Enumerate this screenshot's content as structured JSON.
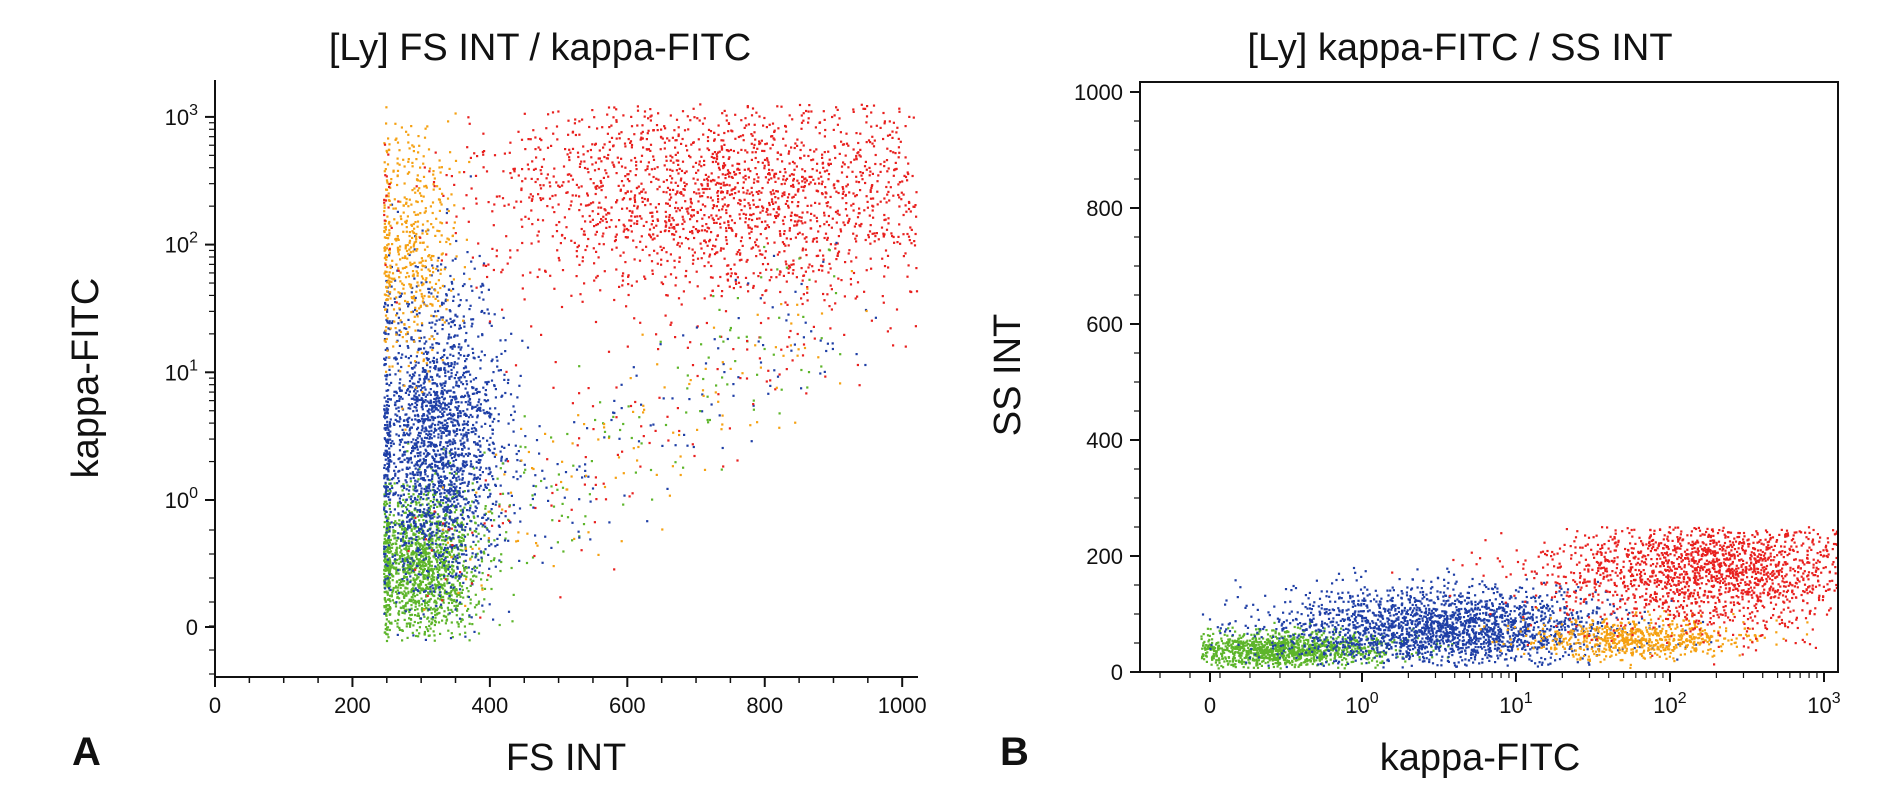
{
  "chart_data": [
    {
      "panel": "A",
      "type": "scatter",
      "title": "[Ly] FS INT / kappa-FITC",
      "xlabel": "FS INT",
      "ylabel": "kappa-FITC",
      "x_scale": "linear",
      "y_scale": "log",
      "xlim": [
        0,
        1023
      ],
      "ylim": [
        "below 0",
        1000
      ],
      "x_ticks": [
        "0",
        "200",
        "400",
        "600",
        "800",
        "1000"
      ],
      "y_ticks": [
        "0",
        "10^0",
        "10^1",
        "10^2",
        "10^3"
      ],
      "colors": {
        "red": "#e8201e",
        "orange": "#f5a112",
        "blue": "#1f3fa6",
        "green": "#5db52a"
      },
      "populations": [
        {
          "color": "red",
          "x_center": 750,
          "y_center": 250,
          "description_values": {
            "x_range": [
              250,
              1023
            ],
            "y_range": [
              20,
              1000
            ]
          }
        },
        {
          "color": "orange",
          "x_center": 280,
          "y_center": 100,
          "description_values": {
            "x_range": [
              250,
              650
            ],
            "y_range": [
              0.8,
              300
            ]
          }
        },
        {
          "color": "blue",
          "x_center": 320,
          "y_center": 3,
          "description_values": {
            "x_range": [
              250,
              600
            ],
            "y_range": [
              0.5,
              100
            ]
          }
        },
        {
          "color": "green",
          "x_center": 300,
          "y_center": 0.3,
          "description_values": {
            "x_range": [
              250,
              700
            ],
            "y_range": [
              0,
              10
            ]
          }
        }
      ],
      "grid": false,
      "legend": "none"
    },
    {
      "panel": "B",
      "type": "scatter",
      "title": "[Ly] kappa-FITC / SS INT",
      "xlabel": "kappa-FITC",
      "ylabel": "SS INT",
      "x_scale": "log",
      "y_scale": "linear",
      "xlim": [
        "below 0",
        1000
      ],
      "ylim": [
        0,
        1023
      ],
      "x_ticks": [
        "0",
        "10^0",
        "10^1",
        "10^2",
        "10^3"
      ],
      "y_ticks": [
        "0",
        "200",
        "400",
        "600",
        "800",
        "1000"
      ],
      "colors": {
        "red": "#e8201e",
        "orange": "#f5a112",
        "blue": "#1f3fa6",
        "green": "#5db52a"
      },
      "populations": [
        {
          "color": "green",
          "x_center": 0.3,
          "y_center": 40,
          "description_values": {
            "x_range": [
              0,
              3
            ],
            "y_range": [
              20,
              220
            ]
          }
        },
        {
          "color": "blue",
          "x_center": 3,
          "y_center": 80,
          "description_values": {
            "x_range": [
              0.8,
              50
            ],
            "y_range": [
              30,
              250
            ]
          }
        },
        {
          "color": "orange",
          "x_center": 60,
          "y_center": 60,
          "description_values": {
            "x_range": [
              10,
              300
            ],
            "y_range": [
              30,
              150
            ]
          }
        },
        {
          "color": "red",
          "x_center": 200,
          "y_center": 180,
          "description_values": {
            "x_range": [
              20,
              1000
            ],
            "y_range": [
              60,
              260
            ]
          }
        }
      ],
      "grid": false,
      "legend": "none"
    }
  ],
  "panel_labels": [
    "A",
    "B"
  ]
}
